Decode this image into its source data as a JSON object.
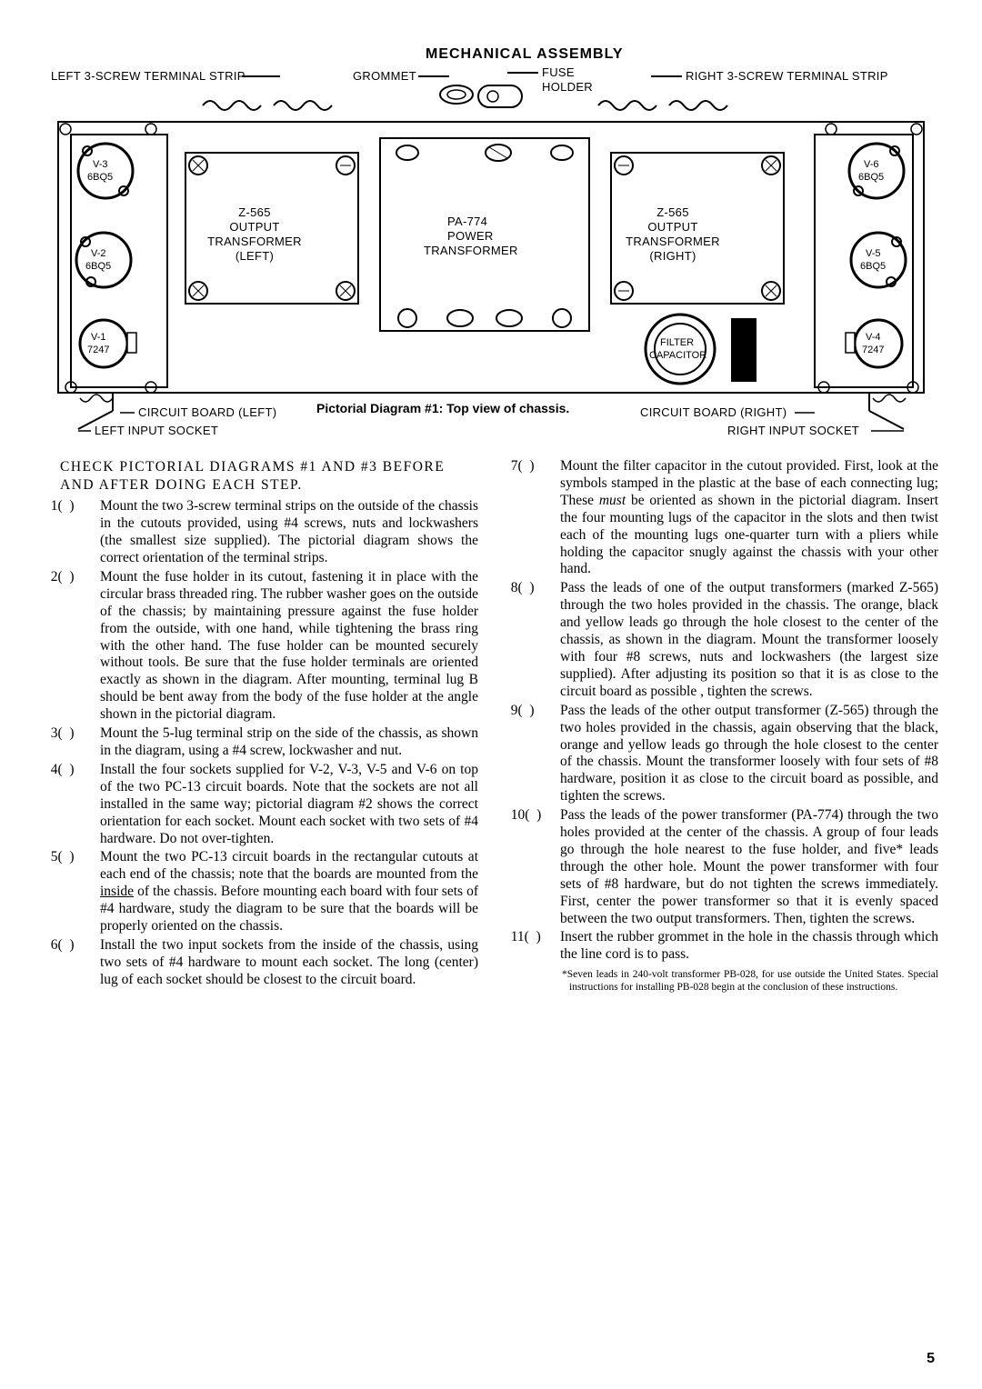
{
  "diagram": {
    "title": "MECHANICAL ASSEMBLY",
    "caption": "Pictorial Diagram #1: Top view of chassis.",
    "labels": {
      "left_terminal": "LEFT 3-SCREW TERMINAL STRIP",
      "right_terminal": "RIGHT 3-SCREW TERMINAL STRIP",
      "grommet": "GROMMET",
      "fuse": "FUSE",
      "holder": "HOLDER",
      "z565": "Z-565",
      "output": "OUTPUT",
      "transformer": "TRANSFORMER",
      "left": "(LEFT)",
      "right": "(RIGHT)",
      "pa774": "PA-774",
      "power": "POWER",
      "filter": "FILTER",
      "capacitor": "CAPACITOR",
      "circuit_left": "CIRCUIT BOARD (LEFT)",
      "circuit_right": "CIRCUIT BOARD (RIGHT)",
      "input_left": "LEFT INPUT SOCKET",
      "input_right": "RIGHT INPUT SOCKET",
      "v1": "V-1",
      "v2": "V-2",
      "v3": "V-3",
      "v4": "V-4",
      "v5": "V-5",
      "v6": "V-6",
      "bq": "6BQ5",
      "t7247": "7247"
    }
  },
  "intro": "CHECK PICTORIAL DIAGRAMS #1 AND #3 BEFORE AND AFTER DOING EACH STEP.",
  "left_steps": [
    "Mount the two 3-screw terminal strips on the outside of the chassis in the cutouts provided, using #4 screws, nuts and lockwashers (the smallest size supplied). The pictorial diagram shows the correct orientation of the terminal strips.",
    "Mount the fuse holder in its cutout, fastening it in place with the circular brass threaded ring. The rubber washer goes on the outside of the chassis; by maintaining pressure against the fuse holder from the outside, with one hand, while tightening the brass ring with the other hand. The fuse holder can be mounted securely without tools. Be sure that the fuse holder terminals are oriented exactly as shown in the diagram. After mounting, terminal lug B should be bent away from the body of the fuse holder at the angle shown in the pictorial diagram.",
    "Mount the 5-lug terminal strip on the side of the chassis, as shown in the diagram, using a #4 screw, lockwasher and nut.",
    "Install the four sockets supplied for V-2, V-3, V-5 and V-6 on top of the two PC-13 circuit boards. Note that the sockets are not all installed in the same way; pictorial diagram #2 shows the correct orientation for each socket. Mount each socket with two sets of #4 hardware. Do not over-tighten.",
    "Mount the two PC-13 circuit boards in the rectangular cutouts at each end of the chassis; note that the boards are mounted from the <span class='u'>inside</span> of the chassis. Before mounting each board with four sets of #4 hardware, study the diagram to be sure that the boards will be properly oriented on the chassis.",
    "Install the two input sockets from the inside of the chassis, using two sets of #4 hardware to mount each socket. The long (center) lug of each socket should be closest to the circuit board."
  ],
  "right_steps": [
    "Mount the filter capacitor in the cutout provided. First, look at the symbols stamped in the plastic at the base of each connecting lug; These <span class='italic'>must</span> be oriented as shown in the pictorial diagram. Insert the four mounting lugs of the capacitor in the slots and then twist each of the mounting lugs one-quarter turn with a pliers while holding the capacitor snugly against the chassis with your other hand.",
    "Pass the leads of one of the output transformers (marked Z-565) through the two holes provided in the chassis. The orange, black and yellow leads go through the hole closest to the center of the chassis, as shown in the diagram. Mount the transformer loosely with four #8 screws, nuts and lockwashers (the largest size supplied). After adjusting its position so that it is as close to the circuit board as possible , tighten the screws.",
    "Pass the leads of the other output transformer (Z-565) through the two holes provided in the chassis, again observing that the black, orange and yellow leads go through the hole closest to the center of the chassis. Mount the transformer loosely with four sets of #8 hardware, position it as close to the circuit board as possible, and tighten the screws.",
    "Pass the leads of the power transformer (PA-774) through the two holes provided at the center of the chassis. A group of four leads go through the hole nearest to the fuse holder, and five* leads through the other hole. Mount the power transformer with four sets of #8 hardware, but do not tighten the screws immediately. First, center the power transformer so that it is evenly spaced between the two output transformers. Then, tighten the screws.",
    "Insert the rubber grommet in the hole in the chassis through which the line cord is to pass."
  ],
  "footnote": "*Seven leads in 240-volt transformer PB-028, for use outside the United States. Special instructions for installing PB-028 begin at the conclusion of these instructions.",
  "page_num": "5"
}
